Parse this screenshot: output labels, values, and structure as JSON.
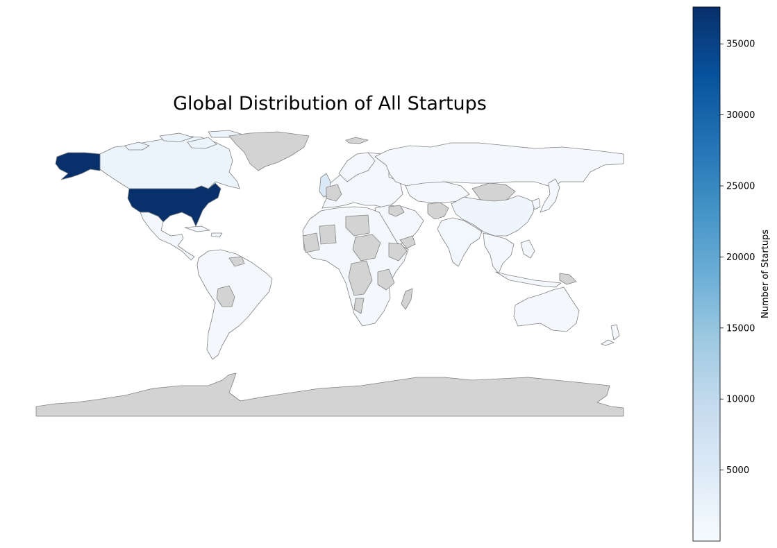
{
  "map": {
    "title": "Global Distribution of All Startups",
    "colormap": "Blues",
    "no_data_color": "#d3d3d3",
    "border_color": "#808080",
    "colorbar": {
      "label": "Number of Startups",
      "min": 0,
      "max": 37600,
      "ticks": [
        5000,
        10000,
        15000,
        20000,
        25000,
        30000,
        35000
      ],
      "tick_labels": [
        "5000",
        "10000",
        "15000",
        "20000",
        "25000",
        "30000",
        "35000"
      ],
      "stops": [
        "#f7fbff",
        "#deebf7",
        "#c6dbef",
        "#9ecae1",
        "#6baed6",
        "#4292c6",
        "#2171b5",
        "#08519c",
        "#08306b"
      ]
    }
  },
  "chart_data": {
    "type": "choropleth",
    "title": "Global Distribution of All Startups",
    "value_label": "Number of Startups",
    "range": [
      0,
      37600
    ],
    "regions": [
      {
        "name": "United States",
        "value": 37600,
        "color": "#08306b"
      },
      {
        "name": "Canada",
        "value": 1800,
        "color": "#ebf3fb"
      },
      {
        "name": "United Kingdom",
        "value": 4600,
        "color": "#dbe9f6"
      },
      {
        "name": "India",
        "value": 900,
        "color": "#f1f7fd"
      },
      {
        "name": "China",
        "value": 1000,
        "color": "#eff5fc"
      },
      {
        "name": "Greenland",
        "value": null,
        "color": "#d3d3d3"
      },
      {
        "name": "Antarctica",
        "value": null,
        "color": "#d3d3d3"
      }
    ]
  }
}
